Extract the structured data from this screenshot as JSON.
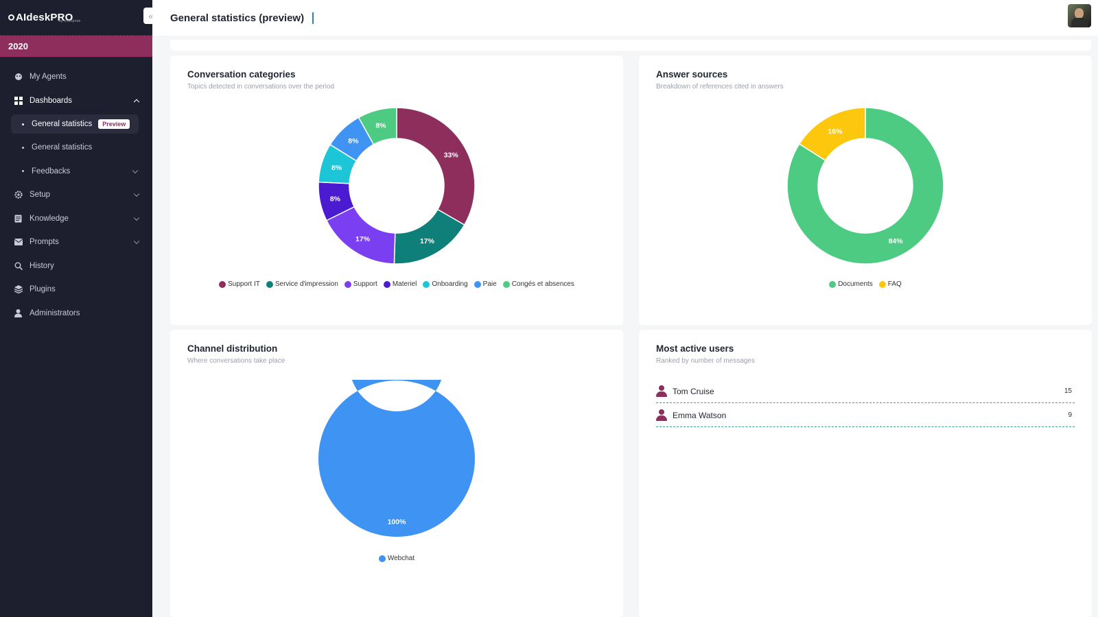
{
  "sidebar": {
    "brand": "AIdeskPRO",
    "brand_sub": "by enterprise",
    "year": "2020",
    "items": {
      "my_agents": "My Agents",
      "dashboards": "Dashboards",
      "general_statistics_preview": "General statistics",
      "preview_badge": "Preview",
      "general_statistics": "General statistics",
      "feedbacks": "Feedbacks",
      "setup": "Setup",
      "knowledge": "Knowledge",
      "prompts": "Prompts",
      "history": "History",
      "plugins": "Plugins",
      "administrators": "Administrators"
    }
  },
  "header": {
    "title": "General statistics (preview)"
  },
  "cards": {
    "categories": {
      "title": "Conversation categories",
      "subtitle": "Topics detected in conversations over the period"
    },
    "sources": {
      "title": "Answer sources",
      "subtitle": "Breakdown of references cited in answers"
    },
    "channels": {
      "title": "Channel distribution",
      "subtitle": "Where conversations take place"
    },
    "users": {
      "title": "Most active users",
      "subtitle": "Ranked by number of messages",
      "rows": [
        {
          "name": "Tom Cruise",
          "count": "15"
        },
        {
          "name": "Emma Watson",
          "count": "9"
        }
      ]
    }
  },
  "chart_data": [
    {
      "type": "pie",
      "id": "categories",
      "series": [
        {
          "name": "Support IT",
          "value": 33,
          "label": "33%",
          "color": "#8d2e5c"
        },
        {
          "name": "Service d'impression",
          "value": 17,
          "label": "17%",
          "color": "#0e8079"
        },
        {
          "name": "Support",
          "value": 17,
          "label": "17%",
          "color": "#7b3ff2"
        },
        {
          "name": "Materiel",
          "value": 8,
          "label": "8%",
          "color": "#4a1bd1"
        },
        {
          "name": "Onboarding",
          "value": 8,
          "label": "8%",
          "color": "#1cc6d6"
        },
        {
          "name": "Paie",
          "value": 8,
          "label": "8%",
          "color": "#3f93f2"
        },
        {
          "name": "Congés et absences",
          "value": 8,
          "label": "8%",
          "color": "#4ecb82"
        }
      ]
    },
    {
      "type": "pie",
      "id": "sources",
      "series": [
        {
          "name": "Documents",
          "value": 84,
          "label": "84%",
          "color": "#4ecb82"
        },
        {
          "name": "FAQ",
          "value": 16,
          "label": "16%",
          "color": "#fdc70d"
        }
      ]
    },
    {
      "type": "pie",
      "id": "channels",
      "series": [
        {
          "name": "Webchat",
          "value": 100,
          "label": "100%",
          "color": "#3f93f2"
        }
      ]
    }
  ]
}
